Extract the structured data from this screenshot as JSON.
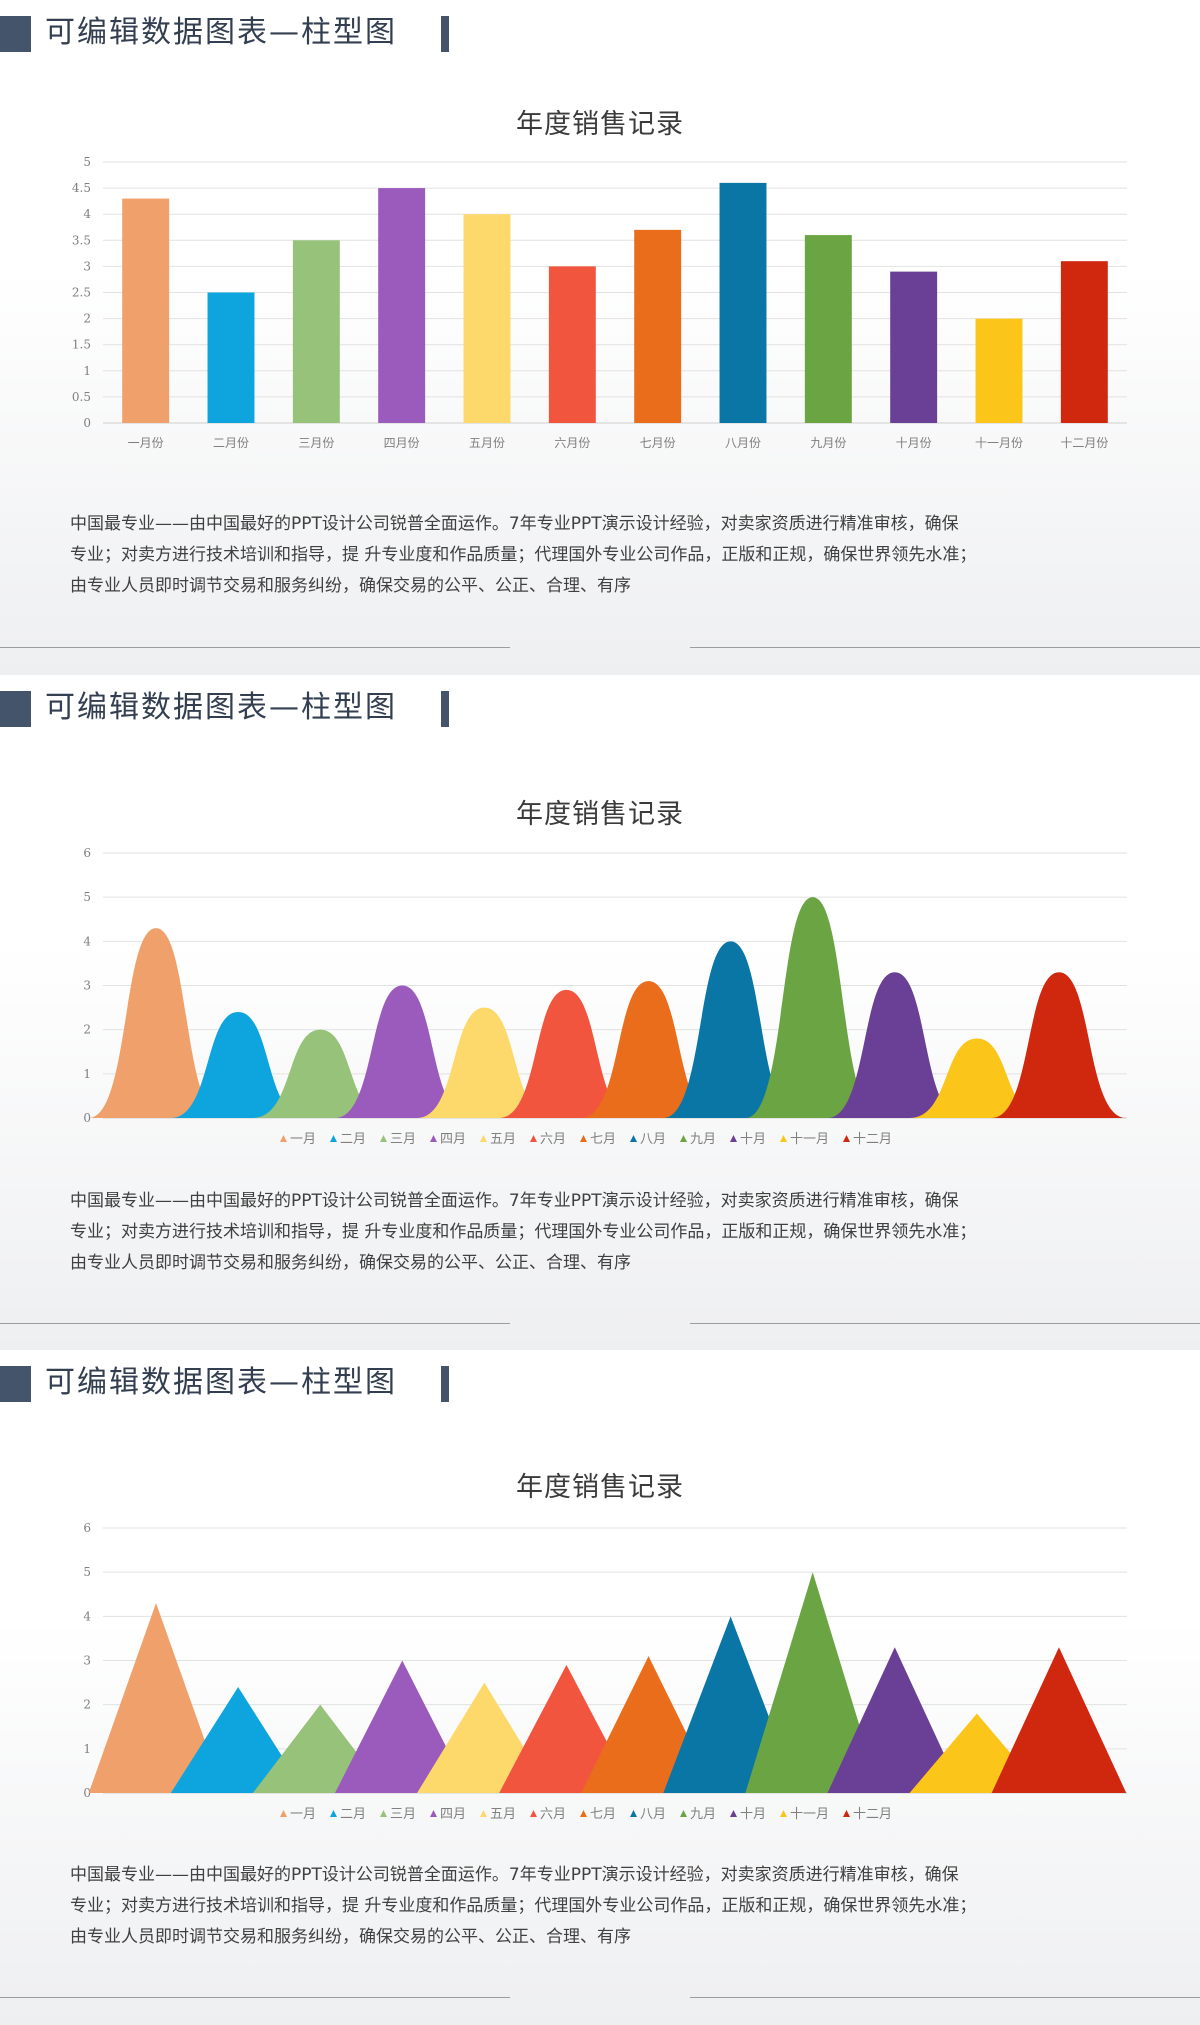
{
  "slides": [
    {
      "header_title": "可编辑数据图表—柱型图",
      "description_lines": [
        "中国最专业——由中国最好的PPT设计公司锐普全面运作。7年专业PPT演示设计经验，对卖家资质进行精准审核，确保",
        "专业；对卖方进行技术培训和指导，提 升专业度和作品质量；代理国外专业公司作品，正版和正规，确保世界领先水准；",
        "由专业人员即时调节交易和服务纠纷，确保交易的公平、公正、合理、有序"
      ]
    },
    {
      "header_title": "可编辑数据图表—柱型图",
      "description_lines": [
        "中国最专业——由中国最好的PPT设计公司锐普全面运作。7年专业PPT演示设计经验，对卖家资质进行精准审核，确保",
        "专业；对卖方进行技术培训和指导，提 升专业度和作品质量；代理国外专业公司作品，正版和正规，确保世界领先水准；",
        "由专业人员即时调节交易和服务纠纷，确保交易的公平、公正、合理、有序"
      ]
    },
    {
      "header_title": "可编辑数据图表—柱型图",
      "description_lines": [
        "中国最专业——由中国最好的PPT设计公司锐普全面运作。7年专业PPT演示设计经验，对卖家资质进行精准审核，确保",
        "专业；对卖方进行技术培训和指导，提 升专业度和作品质量；代理国外专业公司作品，正版和正规，确保世界领先水准；",
        "由专业人员即时调节交易和服务纠纷，确保交易的公平、公正、合理、有序"
      ]
    }
  ],
  "colors": [
    "#f0a06a",
    "#0ea5de",
    "#96c27a",
    "#9a5bbd",
    "#fcd96a",
    "#f2553e",
    "#ea6d1c",
    "#0a76a6",
    "#6aa443",
    "#6a3f96",
    "#fcc51a",
    "#d0280f"
  ],
  "chart_data": [
    {
      "type": "bar",
      "title": "年度销售记录",
      "categories": [
        "一月份",
        "二月份",
        "三月份",
        "四月份",
        "五月份",
        "六月份",
        "七月份",
        "八月份",
        "九月份",
        "十月份",
        "十一月份",
        "十二月份"
      ],
      "values": [
        4.3,
        2.5,
        3.5,
        4.5,
        4.0,
        3.0,
        3.7,
        4.6,
        3.6,
        2.9,
        2.0,
        3.1
      ],
      "ylim": [
        0,
        5
      ],
      "yticks": [
        "0",
        "0.5",
        "1",
        "1.5",
        "2",
        "2.5",
        "3",
        "3.5",
        "4",
        "4.5",
        "5"
      ],
      "grid": true,
      "legend": "none"
    },
    {
      "type": "area",
      "shape": "bell",
      "title": "年度销售记录",
      "categories": [
        "一月",
        "二月",
        "三月",
        "四月",
        "五月",
        "六月",
        "七月",
        "八月",
        "九月",
        "十月",
        "十一月",
        "十二月"
      ],
      "values": [
        4.3,
        2.4,
        2.0,
        3.0,
        2.5,
        2.9,
        3.1,
        4.0,
        5.0,
        3.3,
        1.8,
        3.3
      ],
      "ylim": [
        0,
        6
      ],
      "yticks": [
        "0",
        "1",
        "2",
        "3",
        "4",
        "5",
        "6"
      ],
      "grid": true,
      "legend": "bottom"
    },
    {
      "type": "area",
      "shape": "triangle",
      "title": "年度销售记录",
      "categories": [
        "一月",
        "二月",
        "三月",
        "四月",
        "五月",
        "六月",
        "七月",
        "八月",
        "九月",
        "十月",
        "十一月",
        "十二月"
      ],
      "values": [
        4.3,
        2.4,
        2.0,
        3.0,
        2.5,
        2.9,
        3.1,
        4.0,
        5.0,
        3.3,
        1.8,
        3.3
      ],
      "ylim": [
        0,
        6
      ],
      "yticks": [
        "0",
        "1",
        "2",
        "3",
        "4",
        "5",
        "6"
      ],
      "grid": true,
      "legend": "bottom"
    }
  ]
}
